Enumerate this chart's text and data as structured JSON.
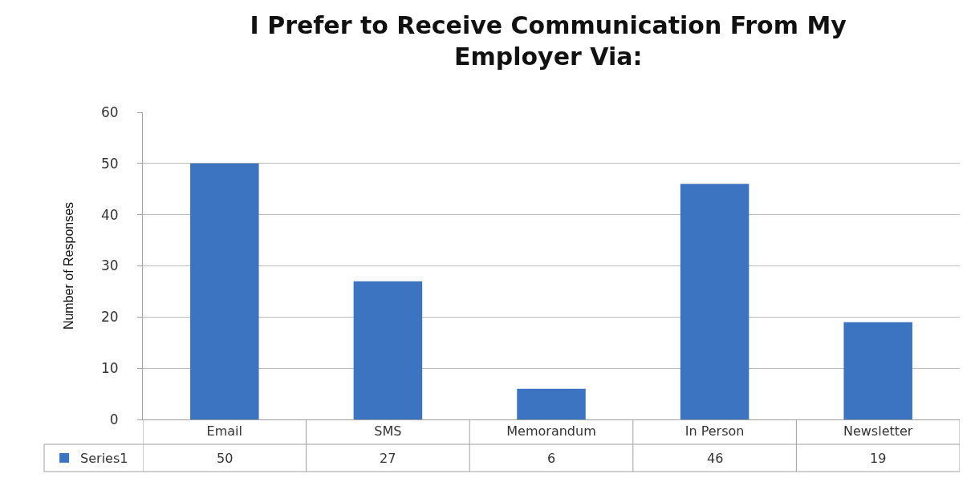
{
  "chart_data": {
    "type": "bar",
    "title": "I Prefer to Receive Communication From My\nEmployer Via:",
    "ylabel": "Number of Responses",
    "categories": [
      "Email",
      "SMS",
      "Memorandum",
      "In Person",
      "Newsletter"
    ],
    "series": [
      {
        "name": "Series1",
        "color": "#3d74c2",
        "values": [
          50,
          27,
          6,
          46,
          19
        ]
      }
    ],
    "ylim": [
      0,
      60
    ],
    "yticks": [
      0,
      10,
      20,
      30,
      40,
      50,
      60
    ],
    "grid": "y",
    "legend": "bottom left",
    "data_labels": true
  }
}
